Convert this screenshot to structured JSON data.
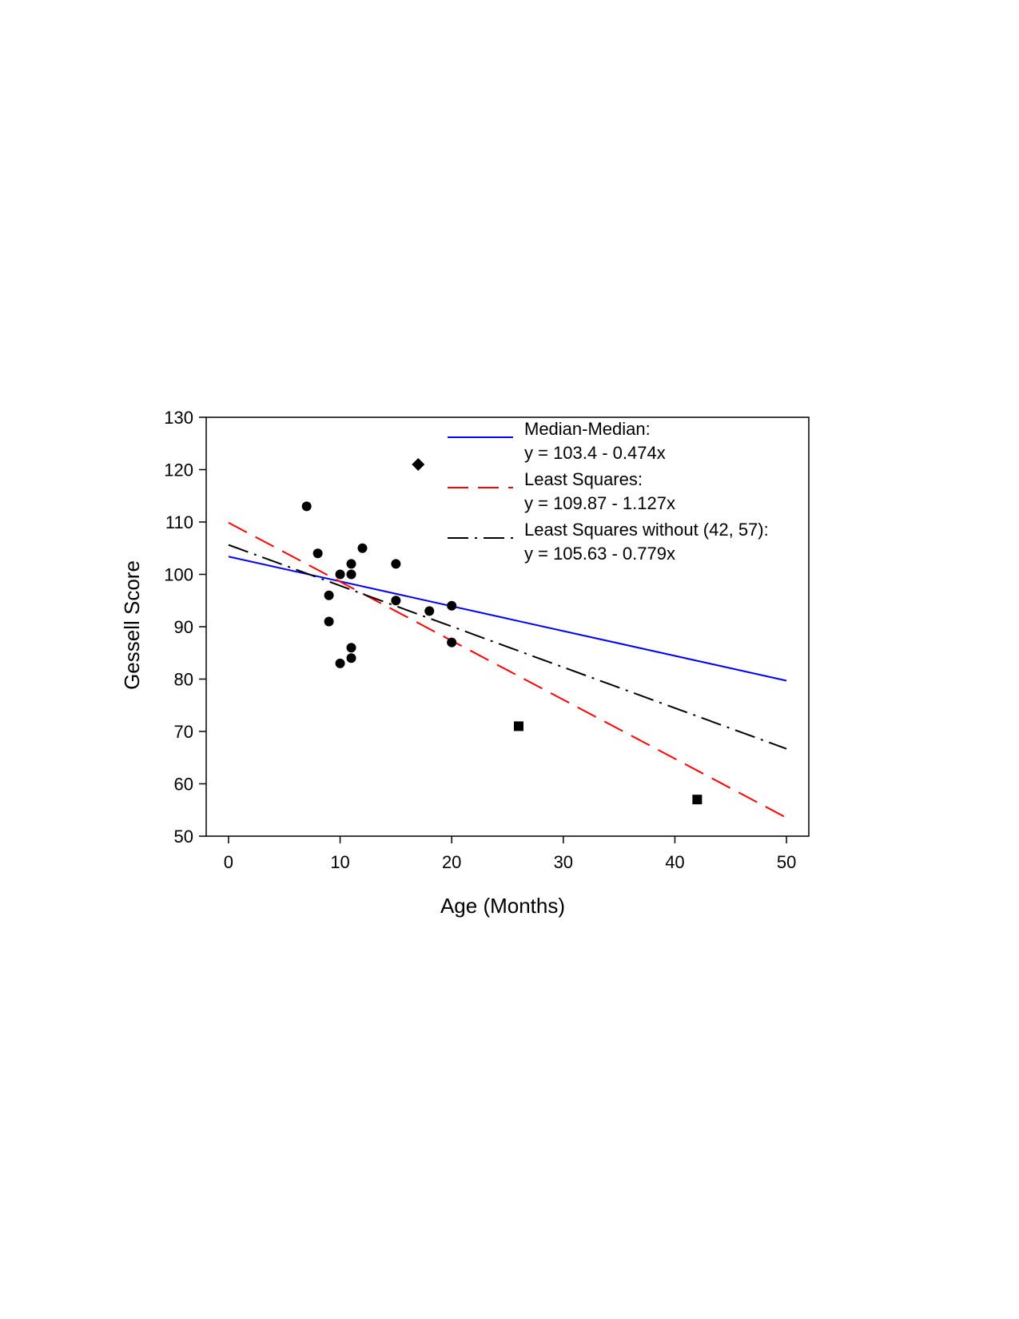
{
  "chart_data": {
    "type": "scatter",
    "title": "",
    "xlabel": "Age (Months)",
    "ylabel": "Gessell Score",
    "xlim": [
      -2,
      52
    ],
    "ylim": [
      50,
      130
    ],
    "xticks": [
      0,
      10,
      20,
      30,
      40,
      50
    ],
    "yticks": [
      50,
      60,
      70,
      80,
      90,
      100,
      110,
      120,
      130
    ],
    "grid": false,
    "legend_position": "top-right",
    "points": [
      {
        "x": 7,
        "y": 113,
        "marker": "circle"
      },
      {
        "x": 8,
        "y": 104,
        "marker": "circle"
      },
      {
        "x": 9,
        "y": 96,
        "marker": "circle"
      },
      {
        "x": 9,
        "y": 91,
        "marker": "circle"
      },
      {
        "x": 10,
        "y": 100,
        "marker": "circle"
      },
      {
        "x": 10,
        "y": 83,
        "marker": "circle"
      },
      {
        "x": 11,
        "y": 102,
        "marker": "circle"
      },
      {
        "x": 11,
        "y": 100,
        "marker": "circle"
      },
      {
        "x": 11,
        "y": 86,
        "marker": "circle"
      },
      {
        "x": 11,
        "y": 84,
        "marker": "circle"
      },
      {
        "x": 12,
        "y": 105,
        "marker": "circle"
      },
      {
        "x": 15,
        "y": 102,
        "marker": "circle"
      },
      {
        "x": 15,
        "y": 95,
        "marker": "circle"
      },
      {
        "x": 17,
        "y": 121,
        "marker": "diamond"
      },
      {
        "x": 18,
        "y": 93,
        "marker": "circle"
      },
      {
        "x": 20,
        "y": 94,
        "marker": "circle"
      },
      {
        "x": 20,
        "y": 87,
        "marker": "circle"
      },
      {
        "x": 26,
        "y": 71,
        "marker": "square"
      },
      {
        "x": 42,
        "y": 57,
        "marker": "square"
      }
    ],
    "lines": [
      {
        "name": "Median-Median:",
        "equation": "y = 103.4 - 0.474x",
        "intercept": 103.4,
        "slope": -0.474,
        "color": "#0000ff",
        "dash": "solid",
        "x_range": [
          0,
          50
        ]
      },
      {
        "name": "Least Squares:",
        "equation": "y = 109.87 - 1.127x",
        "intercept": 109.87,
        "slope": -1.127,
        "color": "#ff0000",
        "dash": "dashed",
        "x_range": [
          0,
          50
        ]
      },
      {
        "name": "Least Squares without (42, 57):",
        "equation": "y = 105.63 - 0.779x",
        "intercept": 105.63,
        "slope": -0.779,
        "color": "#000000",
        "dash": "dash-dot",
        "x_range": [
          0,
          50
        ]
      }
    ]
  }
}
